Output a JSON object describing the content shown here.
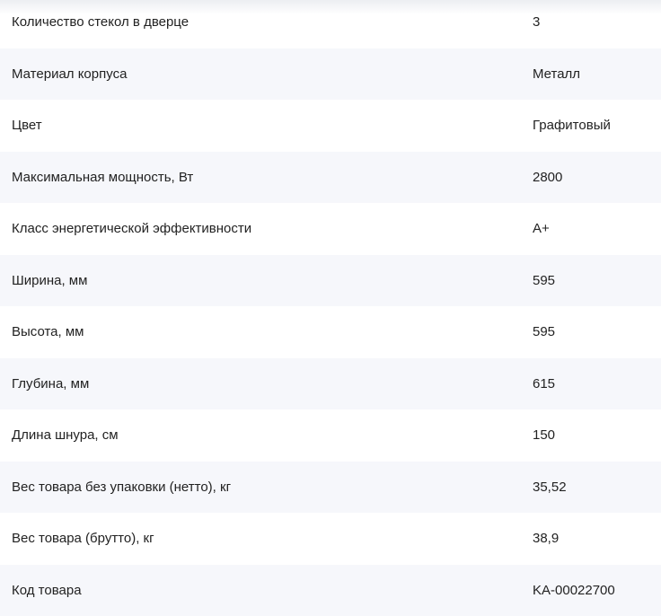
{
  "specs": [
    {
      "name": "Количество стекол в дверце",
      "value": "3"
    },
    {
      "name": "Материал корпуса",
      "value": "Металл"
    },
    {
      "name": "Цвет",
      "value": "Графитовый"
    },
    {
      "name": "Максимальная мощность, Вт",
      "value": "2800"
    },
    {
      "name": "Класс энергетической эффективности",
      "value": "A+"
    },
    {
      "name": "Ширина, мм",
      "value": "595"
    },
    {
      "name": "Высота, мм",
      "value": "595"
    },
    {
      "name": "Глубина, мм",
      "value": "615"
    },
    {
      "name": "Длина шнура, см",
      "value": "150"
    },
    {
      "name": "Вес товара без упаковки (нетто), кг",
      "value": "35,52"
    },
    {
      "name": "Вес товара (брутто), кг",
      "value": "38,9"
    },
    {
      "name": "Код товара",
      "value": "KA-00022700"
    }
  ]
}
